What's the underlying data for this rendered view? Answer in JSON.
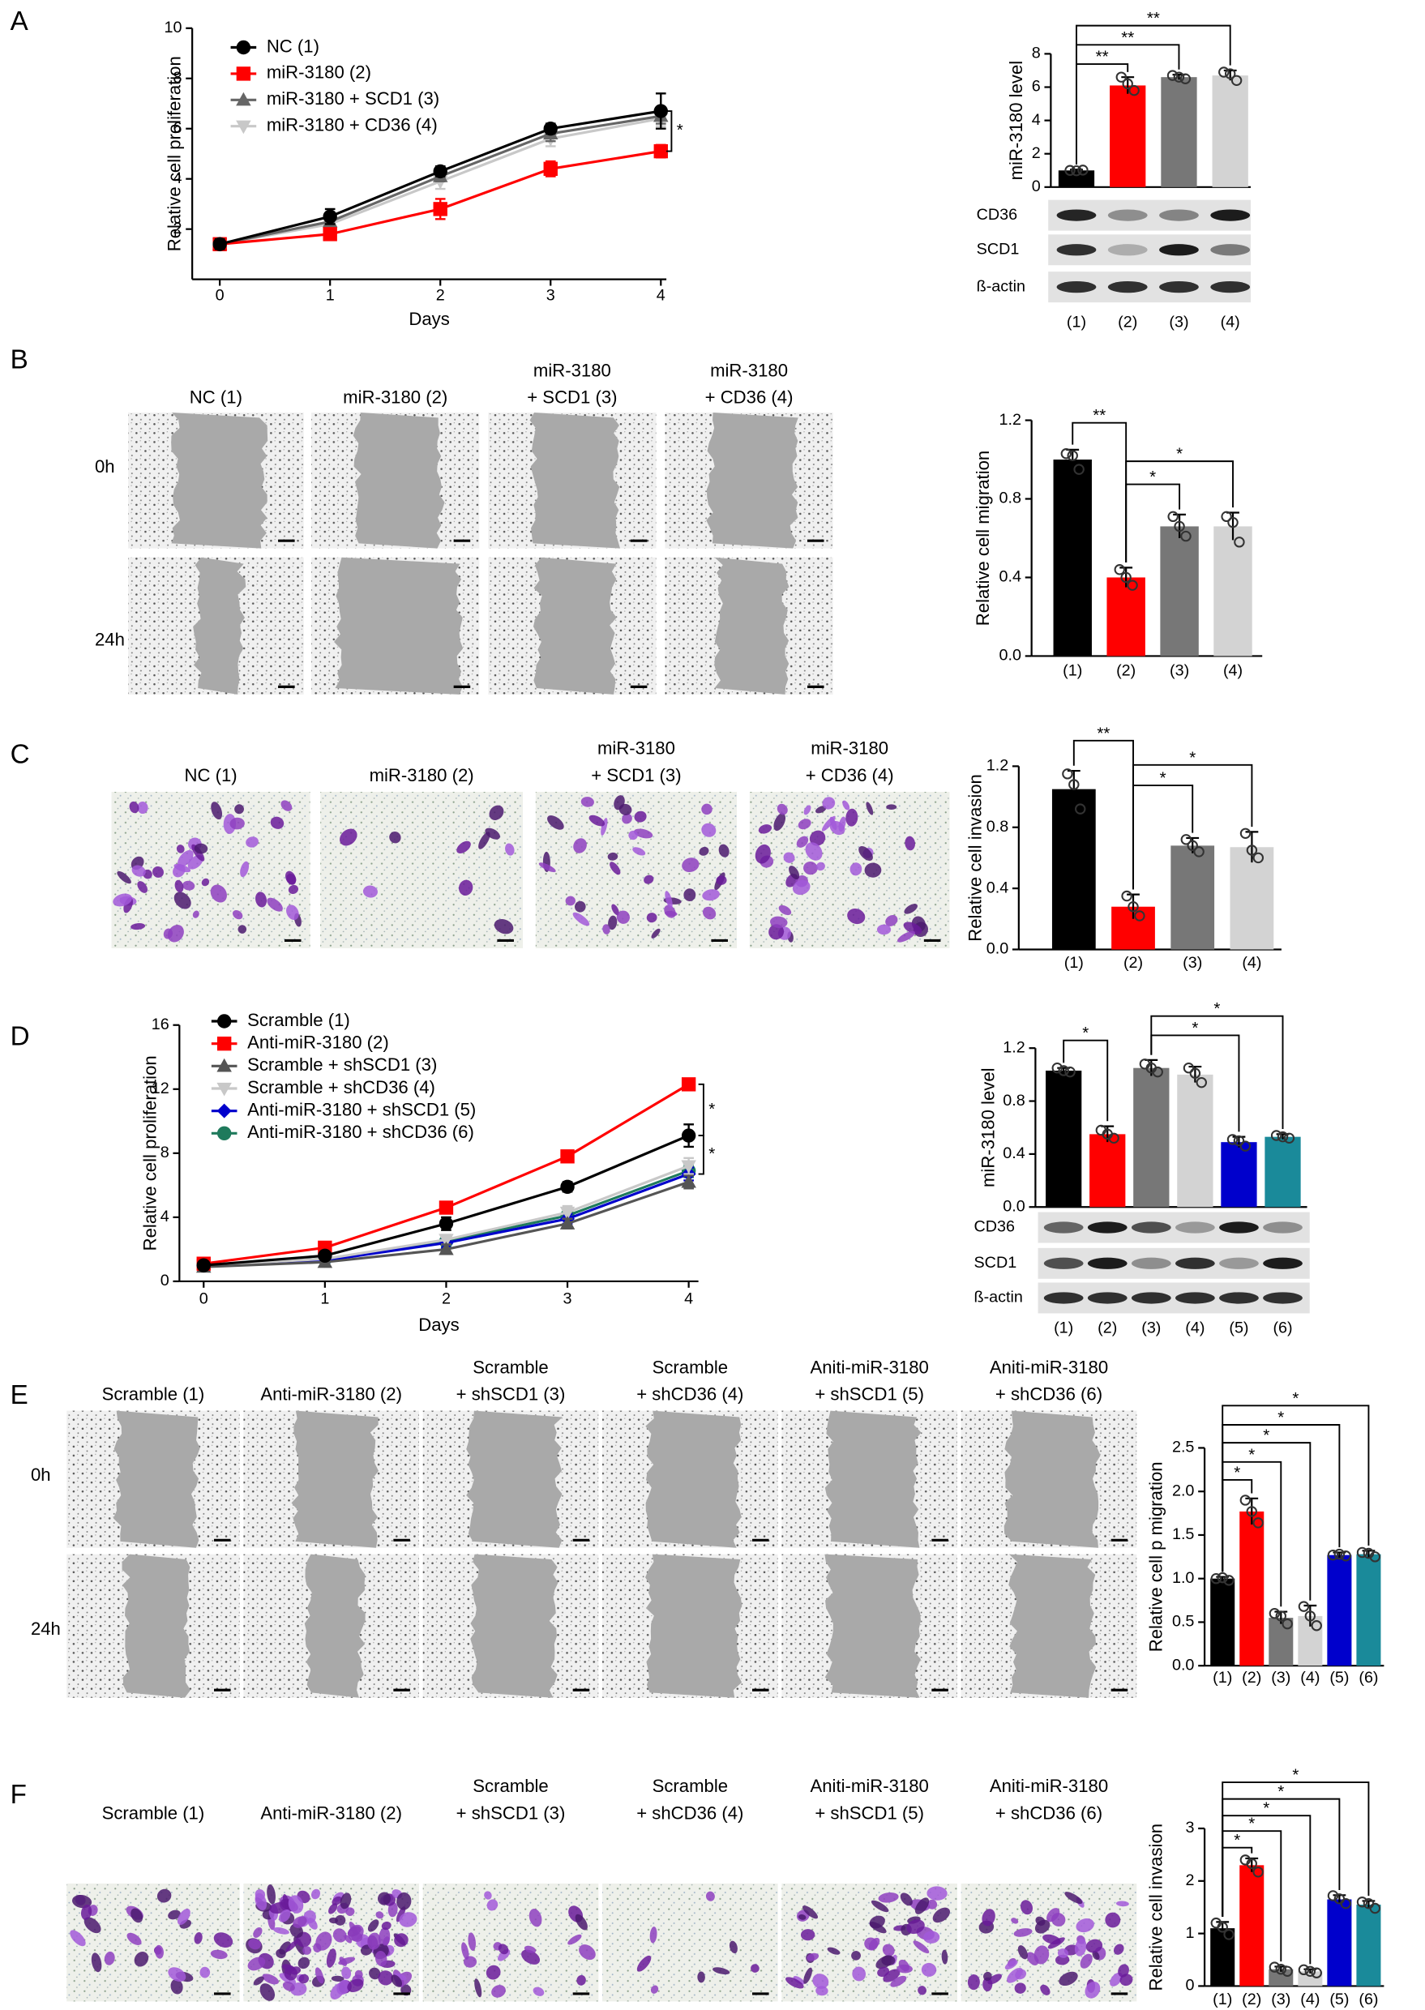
{
  "panel_labels": [
    "A",
    "B",
    "C",
    "D",
    "E",
    "F"
  ],
  "chart_data": [
    {
      "type": "line",
      "xlabel": "Days",
      "ylabel": "Relative cell proliferation",
      "x": [
        0,
        1,
        2,
        3,
        4
      ],
      "xlim": [
        -0.25,
        4.05
      ],
      "xticks": [
        0,
        1,
        2,
        3,
        4
      ],
      "ylim": [
        0,
        10
      ],
      "yticks": [
        2,
        4,
        6,
        8,
        10
      ],
      "series": [
        {
          "name": "NC (1)",
          "color": "#000000",
          "marker": "circle",
          "values": [
            1.4,
            2.5,
            4.3,
            6.0,
            6.7
          ],
          "errors": [
            0.2,
            0.3,
            0.2,
            0.2,
            0.7
          ]
        },
        {
          "name": "miR-3180 (2)",
          "color": "#ff0000",
          "marker": "square",
          "values": [
            1.4,
            1.8,
            2.8,
            4.4,
            5.1
          ],
          "errors": [
            0.2,
            0.15,
            0.4,
            0.3,
            0.25
          ]
        },
        {
          "name": "miR-3180 + SCD1 (3)",
          "color": "#666666",
          "marker": "triangle",
          "values": [
            1.4,
            2.3,
            4.1,
            5.8,
            6.5
          ],
          "errors": [
            0.2,
            0.2,
            0.2,
            0.3,
            0.3
          ]
        },
        {
          "name": "miR-3180 + CD36 (4)",
          "color": "#c8c8c8",
          "marker": "triangle-down",
          "values": [
            1.4,
            2.2,
            3.9,
            5.6,
            6.4
          ],
          "errors": [
            0.2,
            0.2,
            0.3,
            0.3,
            0.3
          ]
        }
      ],
      "annotations": [
        {
          "text": "*",
          "between": [
            0,
            1
          ]
        }
      ]
    },
    {
      "type": "bar",
      "ylabel": "miR-3180 level",
      "categories": [
        "(1)",
        "(2)",
        "(3)",
        "(4)"
      ],
      "values": [
        1.0,
        6.1,
        6.6,
        6.7
      ],
      "errors": [
        0.05,
        0.5,
        0.15,
        0.3
      ],
      "points": [
        [
          1.0,
          1.02,
          0.98
        ],
        [
          6.6,
          5.8,
          6.2
        ],
        [
          6.7,
          6.5,
          6.6
        ],
        [
          6.9,
          6.4,
          6.8
        ]
      ],
      "colors": [
        "#000000",
        "#ff0000",
        "#777777",
        "#d3d3d3"
      ],
      "ylim": [
        0,
        8
      ],
      "yticks": [
        0,
        2,
        4,
        6,
        8
      ],
      "significance": [
        {
          "text": "**",
          "between": [
            0,
            1
          ]
        },
        {
          "text": "**",
          "between": [
            0,
            2
          ]
        },
        {
          "text": "**",
          "between": [
            0,
            3
          ]
        }
      ]
    },
    {
      "type": "bar",
      "ylabel": "Relative cell migration",
      "categories": [
        "(1)",
        "(2)",
        "(3)",
        "(4)"
      ],
      "values": [
        1.0,
        0.4,
        0.66,
        0.66
      ],
      "errors": [
        0.05,
        0.05,
        0.06,
        0.07
      ],
      "points": [
        [
          1.03,
          0.95,
          1.02
        ],
        [
          0.44,
          0.36,
          0.4
        ],
        [
          0.71,
          0.61,
          0.66
        ],
        [
          0.71,
          0.58,
          0.68
        ]
      ],
      "colors": [
        "#000000",
        "#ff0000",
        "#777777",
        "#d3d3d3"
      ],
      "ylim": [
        0,
        1.2
      ],
      "yticks": [
        {
          "value": 0,
          "label": "0.0"
        },
        0.4,
        0.8,
        1.2
      ],
      "significance": [
        {
          "text": "**",
          "between": [
            0,
            1
          ]
        },
        {
          "text": "*",
          "between": [
            1,
            2
          ]
        },
        {
          "text": "*",
          "between": [
            1,
            3
          ]
        }
      ]
    },
    {
      "type": "bar",
      "ylabel": "Relative cell invasion",
      "categories": [
        "(1)",
        "(2)",
        "(3)",
        "(4)"
      ],
      "values": [
        1.05,
        0.28,
        0.68,
        0.67
      ],
      "errors": [
        0.12,
        0.08,
        0.05,
        0.1
      ],
      "points": [
        [
          1.15,
          0.92,
          1.08
        ],
        [
          0.35,
          0.22,
          0.28
        ],
        [
          0.72,
          0.64,
          0.68
        ],
        [
          0.76,
          0.6,
          0.65
        ]
      ],
      "colors": [
        "#000000",
        "#ff0000",
        "#777777",
        "#d3d3d3"
      ],
      "ylim": [
        0,
        1.2
      ],
      "yticks": [
        {
          "value": 0,
          "label": "0.0"
        },
        0.4,
        0.8,
        1.2
      ],
      "significance": [
        {
          "text": "**",
          "between": [
            0,
            1
          ]
        },
        {
          "text": "*",
          "between": [
            1,
            2
          ]
        },
        {
          "text": "*",
          "between": [
            1,
            3
          ]
        }
      ]
    },
    {
      "type": "line",
      "xlabel": "Days",
      "ylabel": "Relative cell proliferation",
      "x": [
        0,
        1,
        2,
        3,
        4
      ],
      "xlim": [
        -0.2,
        4.08
      ],
      "xticks": [
        0,
        1,
        2,
        3,
        4
      ],
      "ylim": [
        0,
        16
      ],
      "yticks": [
        0,
        4,
        8,
        12,
        16
      ],
      "series": [
        {
          "name": "Scramble (1)",
          "color": "#000000",
          "marker": "circle",
          "values": [
            1.0,
            1.6,
            3.6,
            5.9,
            9.1
          ],
          "errors": [
            0.1,
            0.2,
            0.4,
            0.3,
            0.7
          ]
        },
        {
          "name": "Anti-miR-3180 (2)",
          "color": "#ff0000",
          "marker": "square",
          "values": [
            1.1,
            2.1,
            4.6,
            7.8,
            12.3
          ],
          "errors": [
            0.1,
            0.2,
            0.3,
            0.3,
            0.3
          ]
        },
        {
          "name": "Scramble + shSCD1 (3)",
          "color": "#555555",
          "marker": "triangle",
          "values": [
            0.9,
            1.2,
            2.0,
            3.6,
            6.2
          ],
          "errors": [
            0.1,
            0.2,
            0.3,
            0.3,
            0.4
          ]
        },
        {
          "name": "Scramble + shCD36 (4)",
          "color": "#c8c8c8",
          "marker": "triangle-down",
          "values": [
            1.0,
            1.4,
            2.6,
            4.3,
            7.2
          ],
          "errors": [
            0.1,
            0.2,
            0.3,
            0.4,
            0.5
          ]
        },
        {
          "name": "Anti-miR-3180 + shSCD1 (5)",
          "color": "#0000cc",
          "marker": "diamond",
          "values": [
            1.0,
            1.3,
            2.4,
            3.9,
            6.7
          ],
          "errors": [
            0.1,
            0.2,
            0.3,
            0.3,
            0.4
          ]
        },
        {
          "name": "Anti-miR-3180 + shCD36 (6)",
          "color": "#1f7a5c",
          "marker": "circle",
          "values": [
            1.0,
            1.4,
            2.5,
            4.1,
            6.9
          ],
          "errors": [
            0.1,
            0.2,
            0.3,
            0.3,
            0.4
          ]
        }
      ],
      "annotations": [
        {
          "text": "*",
          "between": [
            1,
            0
          ]
        },
        {
          "text": "*",
          "between": [
            0,
            4
          ]
        }
      ]
    },
    {
      "type": "bar",
      "ylabel": "miR-3180 level",
      "categories": [
        "(1)",
        "(2)",
        "(3)",
        "(4)",
        "(5)",
        "(6)"
      ],
      "values": [
        1.03,
        0.55,
        1.05,
        1.0,
        0.49,
        0.53
      ],
      "errors": [
        0.02,
        0.06,
        0.06,
        0.06,
        0.04,
        0.02
      ],
      "points": [
        [
          1.05,
          1.02,
          1.03
        ],
        [
          0.58,
          0.52,
          0.55
        ],
        [
          1.08,
          1.02,
          1.05
        ],
        [
          1.05,
          0.94,
          1.01
        ],
        [
          0.51,
          0.46,
          0.5
        ],
        [
          0.54,
          0.52,
          0.53
        ]
      ],
      "colors": [
        "#000000",
        "#ff0000",
        "#777777",
        "#d3d3d3",
        "#0000cc",
        "#1a8a9a"
      ],
      "ylim": [
        0,
        1.2
      ],
      "yticks": [
        {
          "value": 0,
          "label": "0.0"
        },
        0.4,
        0.8,
        1.2
      ],
      "significance": [
        {
          "text": "*",
          "between": [
            0,
            1
          ]
        },
        {
          "text": "*",
          "between": [
            2,
            4
          ]
        },
        {
          "text": "*",
          "between": [
            2,
            5
          ]
        }
      ]
    },
    {
      "type": "bar",
      "ylabel": "Relative cell p migration",
      "categories": [
        "(1)",
        "(2)",
        "(3)",
        "(4)",
        "(5)",
        "(6)"
      ],
      "values": [
        1.0,
        1.77,
        0.55,
        0.57,
        1.27,
        1.28
      ],
      "errors": [
        0.02,
        0.15,
        0.07,
        0.12,
        0.03,
        0.04
      ],
      "points": [
        [
          1.0,
          0.98,
          1.01
        ],
        [
          1.9,
          1.64,
          1.77
        ],
        [
          0.6,
          0.48,
          0.57
        ],
        [
          0.68,
          0.46,
          0.57
        ],
        [
          1.27,
          1.26,
          1.28
        ],
        [
          1.3,
          1.25,
          1.29
        ]
      ],
      "colors": [
        "#000000",
        "#ff0000",
        "#777777",
        "#d3d3d3",
        "#0000cc",
        "#1a8a9a"
      ],
      "ylim": [
        0,
        2.5
      ],
      "yticks": [
        {
          "value": 0,
          "label": "0.0"
        },
        0.5,
        {
          "value": 1,
          "label": "1.0"
        },
        1.5,
        {
          "value": 2,
          "label": "2.0"
        },
        2.5
      ],
      "significance": [
        {
          "text": "*",
          "between": [
            0,
            1
          ]
        },
        {
          "text": "*",
          "between": [
            0,
            2
          ]
        },
        {
          "text": "*",
          "between": [
            0,
            3
          ]
        },
        {
          "text": "*",
          "between": [
            0,
            4
          ]
        },
        {
          "text": "*",
          "between": [
            0,
            5
          ]
        }
      ]
    },
    {
      "type": "bar",
      "ylabel": "Relative cell invasion",
      "categories": [
        "(1)",
        "(2)",
        "(3)",
        "(4)",
        "(5)",
        "(6)"
      ],
      "values": [
        1.1,
        2.3,
        0.32,
        0.28,
        1.65,
        1.55
      ],
      "errors": [
        0.12,
        0.13,
        0.05,
        0.04,
        0.08,
        0.07
      ],
      "points": [
        [
          1.2,
          0.98,
          1.12
        ],
        [
          2.4,
          2.17,
          2.33
        ],
        [
          0.36,
          0.28,
          0.32
        ],
        [
          0.31,
          0.25,
          0.28
        ],
        [
          1.72,
          1.57,
          1.66
        ],
        [
          1.6,
          1.48,
          1.57
        ]
      ],
      "colors": [
        "#000000",
        "#ff0000",
        "#777777",
        "#d3d3d3",
        "#0000cc",
        "#1a8a9a"
      ],
      "ylim": [
        0,
        3
      ],
      "yticks": [
        0,
        1,
        2,
        3
      ],
      "significance": [
        {
          "text": "*",
          "between": [
            0,
            1
          ]
        },
        {
          "text": "*",
          "between": [
            0,
            2
          ]
        },
        {
          "text": "*",
          "between": [
            0,
            3
          ]
        },
        {
          "text": "*",
          "between": [
            0,
            4
          ]
        },
        {
          "text": "*",
          "between": [
            0,
            5
          ]
        }
      ]
    }
  ],
  "blots": [
    {
      "rows": [
        "CD36",
        "SCD1",
        "ß-actin"
      ]
    },
    {
      "rows": [
        "CD36",
        "SCD1",
        "ß-actin"
      ]
    }
  ],
  "images": [
    {
      "row_labels": [
        "0h",
        "24h"
      ],
      "captions": [
        [
          "NC  (1)"
        ],
        [
          "miR-3180 (2)"
        ],
        [
          "miR-3180",
          "+ SCD1 (3)"
        ],
        [
          "miR-3180",
          "+ CD36 (4)"
        ]
      ]
    },
    {
      "captions": [
        [
          "NC  (1)"
        ],
        [
          "miR-3180 (2)"
        ],
        [
          "miR-3180",
          "+ SCD1 (3)"
        ],
        [
          "miR-3180",
          "+ CD36 (4)"
        ]
      ]
    },
    {
      "row_labels": [
        "0h",
        "24h"
      ],
      "captions": [
        [
          "Scramble (1)"
        ],
        [
          "Anti-miR-3180 (2)"
        ],
        [
          "Scramble",
          "+ shSCD1 (3)"
        ],
        [
          "Scramble",
          "+ shCD36 (4)"
        ],
        [
          "Aniti-miR-3180",
          "+ shSCD1 (5)"
        ],
        [
          "Aniti-miR-3180",
          "+ shCD36 (6)"
        ]
      ]
    },
    {
      "captions": [
        [
          "Scramble (1)"
        ],
        [
          "Anti-miR-3180 (2)"
        ],
        [
          "Scramble",
          "+ shSCD1 (3)"
        ],
        [
          "Scramble",
          "+ shCD36 (4)"
        ],
        [
          "Aniti-miR-3180",
          "+ shSCD1 (5)"
        ],
        [
          "Aniti-miR-3180",
          "+ shCD36 (6)"
        ]
      ]
    }
  ]
}
